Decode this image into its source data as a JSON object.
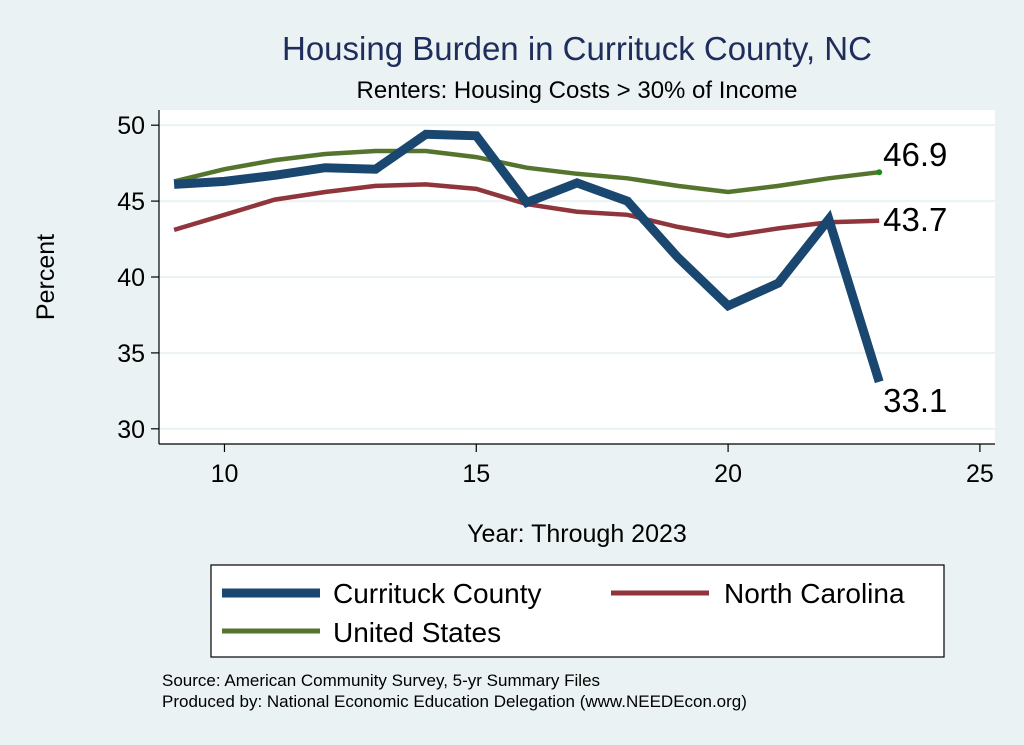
{
  "chart_data": {
    "type": "line",
    "title": "Housing Burden in Currituck County, NC",
    "subtitle": "Renters: Housing Costs > 30% of Income",
    "xlabel": "Year: Through 2023",
    "ylabel": "Percent",
    "xlim": [
      8.7,
      25.3
    ],
    "ylim": [
      29,
      51
    ],
    "xticks": [
      10,
      15,
      20,
      25
    ],
    "yticks": [
      30,
      35,
      40,
      45,
      50
    ],
    "grid": "horizontal",
    "legend_position": "bottom",
    "x": [
      9,
      10,
      11,
      12,
      13,
      14,
      15,
      16,
      17,
      18,
      19,
      20,
      21,
      22,
      23
    ],
    "series": [
      {
        "name": "Currituck County",
        "color": "#1a476f",
        "width": "thick",
        "values": [
          46.1,
          46.3,
          46.7,
          47.2,
          47.1,
          49.4,
          49.3,
          44.9,
          46.2,
          45.0,
          41.3,
          38.1,
          39.6,
          43.8,
          33.1
        ],
        "end_label": "33.1"
      },
      {
        "name": "North Carolina",
        "color": "#90353b",
        "width": "medium",
        "values": [
          43.1,
          44.1,
          45.1,
          45.6,
          46.0,
          46.1,
          45.8,
          44.8,
          44.3,
          44.1,
          43.3,
          42.7,
          43.2,
          43.6,
          43.7
        ],
        "end_label": "43.7"
      },
      {
        "name": "United States",
        "color": "#55752f",
        "width": "medium",
        "values": [
          46.3,
          47.1,
          47.7,
          48.1,
          48.3,
          48.3,
          47.9,
          47.2,
          46.8,
          46.5,
          46.0,
          45.6,
          46.0,
          46.5,
          46.9
        ],
        "end_label": "46.9"
      }
    ],
    "source_lines": [
      "Source: American Community Survey, 5-yr Summary Files",
      "Produced by: National Economic Education Delegation (www.NEEDEcon.org)"
    ]
  }
}
